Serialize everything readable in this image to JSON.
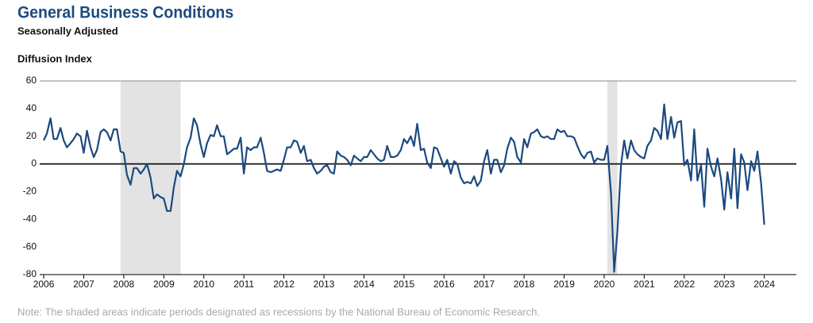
{
  "chart_data": {
    "type": "line",
    "title": "General Business Conditions",
    "subtitle": "Seasonally Adjusted",
    "y_label": "Diffusion Index",
    "note": "Note: The shaded areas indicate periods designated as recessions by the National Bureau of Economic Research.",
    "xlim": [
      2005.9,
      2024.8
    ],
    "ylim": [
      -80,
      60
    ],
    "xticks": [
      2006,
      2007,
      2008,
      2009,
      2010,
      2011,
      2012,
      2013,
      2014,
      2015,
      2016,
      2017,
      2018,
      2019,
      2020,
      2021,
      2022,
      2023,
      2024
    ],
    "yticks": [
      -80,
      -60,
      -40,
      -20,
      0,
      20,
      40,
      60
    ],
    "recessions": [
      [
        2007.92,
        2009.42
      ],
      [
        2020.08,
        2020.33
      ]
    ],
    "recession_color": "#e3e3e3",
    "grid": false,
    "x": [
      2006,
      2006.08,
      2006.17,
      2006.25,
      2006.33,
      2006.42,
      2006.5,
      2006.58,
      2006.67,
      2006.75,
      2006.83,
      2006.92,
      2007,
      2007.08,
      2007.17,
      2007.25,
      2007.33,
      2007.42,
      2007.5,
      2007.58,
      2007.67,
      2007.75,
      2007.83,
      2007.92,
      2008,
      2008.08,
      2008.17,
      2008.25,
      2008.33,
      2008.42,
      2008.5,
      2008.58,
      2008.67,
      2008.75,
      2008.83,
      2008.92,
      2009,
      2009.08,
      2009.17,
      2009.25,
      2009.33,
      2009.42,
      2009.5,
      2009.58,
      2009.67,
      2009.75,
      2009.83,
      2009.92,
      2010,
      2010.08,
      2010.17,
      2010.25,
      2010.33,
      2010.42,
      2010.5,
      2010.58,
      2010.67,
      2010.75,
      2010.83,
      2010.92,
      2011,
      2011.08,
      2011.17,
      2011.25,
      2011.33,
      2011.42,
      2011.5,
      2011.58,
      2011.67,
      2011.75,
      2011.83,
      2011.92,
      2012,
      2012.08,
      2012.17,
      2012.25,
      2012.33,
      2012.42,
      2012.5,
      2012.58,
      2012.67,
      2012.75,
      2012.83,
      2012.92,
      2013,
      2013.08,
      2013.17,
      2013.25,
      2013.33,
      2013.42,
      2013.5,
      2013.58,
      2013.67,
      2013.75,
      2013.83,
      2013.92,
      2014,
      2014.08,
      2014.17,
      2014.25,
      2014.33,
      2014.42,
      2014.5,
      2014.58,
      2014.67,
      2014.75,
      2014.83,
      2014.92,
      2015,
      2015.08,
      2015.17,
      2015.25,
      2015.33,
      2015.42,
      2015.5,
      2015.58,
      2015.67,
      2015.75,
      2015.83,
      2015.92,
      2016,
      2016.08,
      2016.17,
      2016.25,
      2016.33,
      2016.42,
      2016.5,
      2016.58,
      2016.67,
      2016.75,
      2016.83,
      2016.92,
      2017,
      2017.08,
      2017.17,
      2017.25,
      2017.33,
      2017.42,
      2017.5,
      2017.58,
      2017.67,
      2017.75,
      2017.83,
      2017.92,
      2018,
      2018.08,
      2018.17,
      2018.25,
      2018.33,
      2018.42,
      2018.5,
      2018.58,
      2018.67,
      2018.75,
      2018.83,
      2018.92,
      2019,
      2019.08,
      2019.17,
      2019.25,
      2019.33,
      2019.42,
      2019.5,
      2019.58,
      2019.67,
      2019.75,
      2019.83,
      2019.92,
      2020,
      2020.08,
      2020.17,
      2020.25,
      2020.33,
      2020.42,
      2020.5,
      2020.58,
      2020.67,
      2020.75,
      2020.83,
      2020.92,
      2021,
      2021.08,
      2021.17,
      2021.25,
      2021.33,
      2021.42,
      2021.5,
      2021.58,
      2021.67,
      2021.75,
      2021.83,
      2021.92,
      2022,
      2022.08,
      2022.17,
      2022.25,
      2022.33,
      2022.42,
      2022.5,
      2022.58,
      2022.67,
      2022.75,
      2022.83,
      2022.92,
      2023,
      2023.08,
      2023.17,
      2023.25,
      2023.33,
      2023.42,
      2023.5,
      2023.58,
      2023.67,
      2023.75,
      2023.83,
      2023.92,
      2024
    ],
    "series": [
      {
        "color": "#1b4a7f",
        "values": [
          17,
          22,
          33,
          18,
          18,
          26,
          17,
          12,
          15,
          18,
          22,
          20,
          8,
          24,
          12,
          5,
          10,
          23,
          25,
          23,
          17,
          25,
          25,
          9,
          8,
          -8,
          -15,
          -3,
          -3,
          -7,
          -4,
          0,
          -10,
          -25,
          -22,
          -24,
          -25,
          -34,
          -34,
          -17,
          -5,
          -9,
          0,
          12,
          19,
          33,
          28,
          14,
          5,
          15,
          21,
          20,
          28,
          20,
          20,
          7,
          9,
          11,
          11,
          19,
          -7,
          12,
          10,
          12,
          12,
          19,
          8,
          -5,
          -6,
          -5,
          -4,
          -5,
          3,
          12,
          12,
          17,
          16,
          8,
          13,
          2,
          3,
          -3,
          -7,
          -5,
          -2,
          -1,
          -6,
          -7,
          9,
          6,
          5,
          3,
          -1,
          6,
          4,
          2,
          5,
          5,
          10,
          7,
          4,
          2,
          3,
          13,
          5,
          5,
          6,
          10,
          18,
          15,
          20,
          13,
          29,
          10,
          11,
          1,
          -3,
          12,
          11,
          4,
          -2,
          3,
          -7,
          2,
          0,
          -10,
          -14,
          -13,
          -14,
          -9,
          -16,
          -12,
          2,
          10,
          -7,
          3,
          3,
          -6,
          -1,
          11,
          19,
          16,
          5,
          1,
          18,
          12,
          22,
          23,
          25,
          20,
          19,
          20,
          18,
          18,
          25,
          23,
          24,
          20,
          20,
          19,
          13,
          7,
          4,
          8,
          9,
          1,
          4,
          3,
          3,
          13,
          -21,
          -78,
          -49,
          -1,
          17,
          4,
          17,
          10,
          7,
          5,
          4,
          13,
          17,
          26,
          24,
          18,
          43,
          18,
          34,
          19,
          30,
          31,
          -1,
          3,
          -12,
          25,
          -12,
          -1,
          -31,
          11,
          -2,
          -9,
          4,
          -11,
          -33,
          -6,
          -25,
          11,
          -32,
          7,
          1,
          -19,
          2,
          -5,
          9,
          -14,
          -44
        ]
      }
    ]
  }
}
